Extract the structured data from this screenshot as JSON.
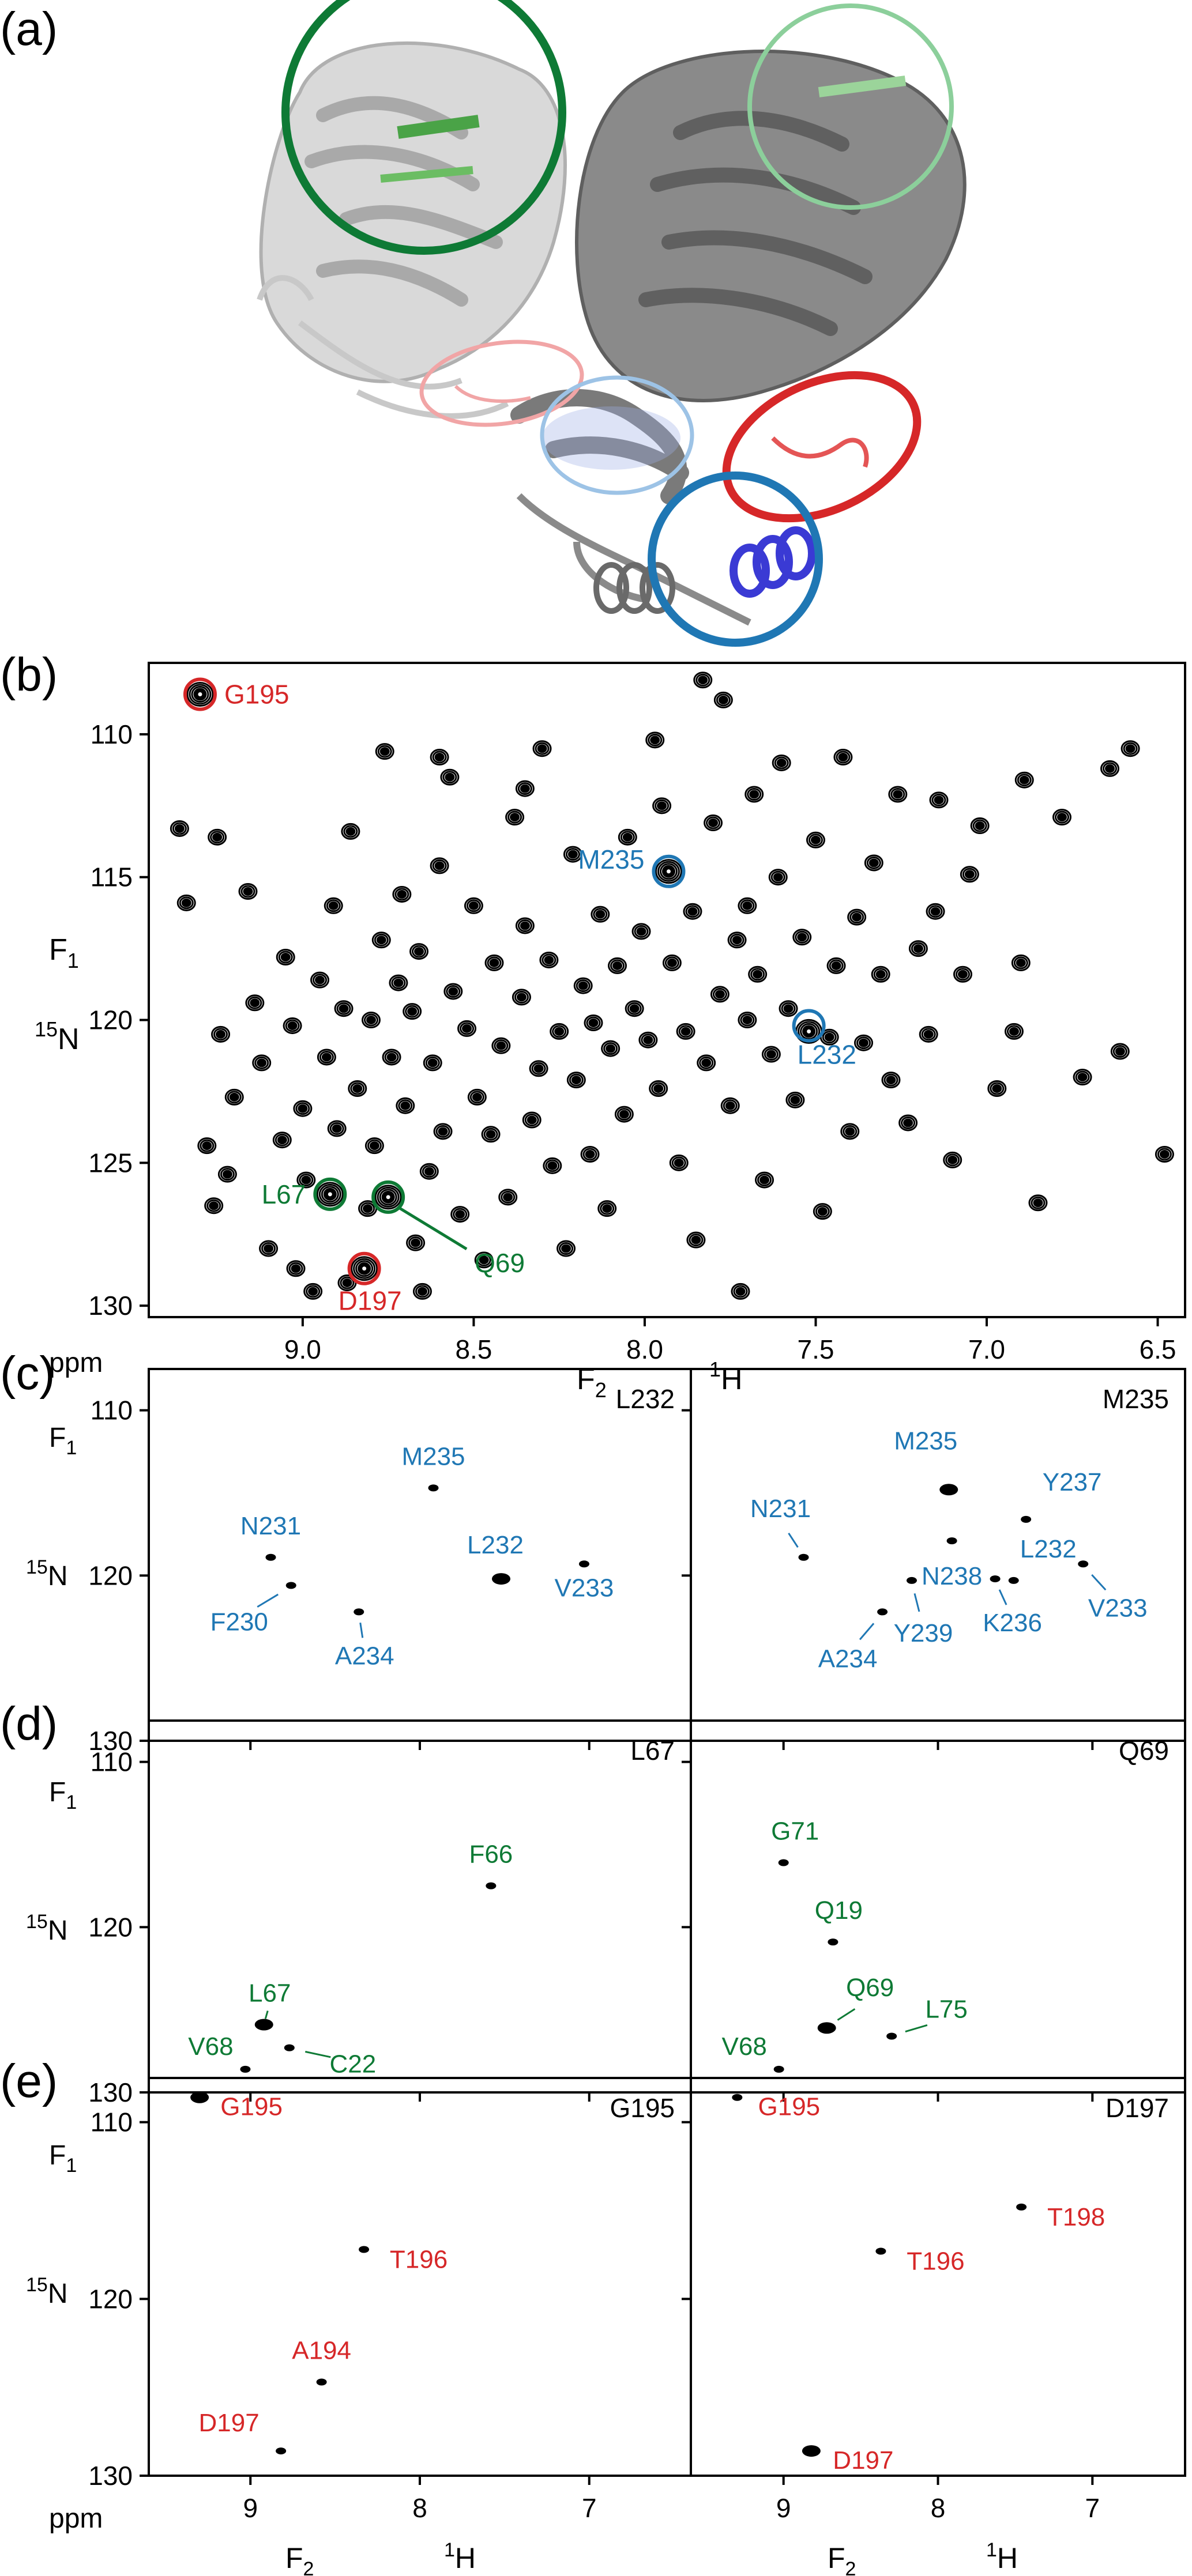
{
  "panel_letters": {
    "a": "(a)",
    "b": "(b)",
    "c": "(c)",
    "d": "(d)",
    "e": "(e)"
  },
  "colors": {
    "blue": "#1f77b4",
    "green": "#0e7a35",
    "red": "#d62728",
    "black": "#000000",
    "light_green": "#8ccf9b",
    "light_red": "#f1a5a6",
    "light_blue": "#9dc3e6"
  },
  "axis_text": {
    "ppm": "ppm",
    "f1_main": "F",
    "f1_sub": "1",
    "n_sup": "15",
    "n_main": "N",
    "f2_main": "F",
    "f2_sub": "2",
    "h_sup": "1",
    "h_main": "H"
  },
  "structure": {
    "highlight_circles": [
      {
        "color": "green",
        "style": "dark"
      },
      {
        "color": "green",
        "style": "light"
      },
      {
        "color": "red",
        "style": "light"
      },
      {
        "color": "blue",
        "style": "light"
      },
      {
        "color": "red",
        "style": "dark"
      },
      {
        "color": "blue",
        "style": "dark"
      }
    ]
  },
  "chart_data": [
    {
      "id": "b",
      "type": "scatter",
      "title": "",
      "xlabel": "F2 1H",
      "ylabel": "F1 15N",
      "xlim": [
        9.45,
        6.42
      ],
      "ylim": [
        130.4,
        107.5
      ],
      "xticks": [
        9.0,
        8.5,
        8.0,
        7.5,
        7.0,
        6.5
      ],
      "xtick_labels": [
        "9.0",
        "8.5",
        "8.0",
        "7.5",
        "7.0",
        "6.5"
      ],
      "yticks": [
        110,
        115,
        120,
        125,
        130
      ],
      "ytick_labels": [
        "110",
        "115",
        "120",
        "125",
        "130"
      ],
      "peaks_hN": [
        [
          9.3,
          108.6,
          2
        ],
        [
          9.36,
          113.3,
          1
        ],
        [
          9.34,
          115.9,
          1
        ],
        [
          9.25,
          113.6,
          1
        ],
        [
          9.24,
          120.5,
          1
        ],
        [
          9.26,
          126.5,
          1
        ],
        [
          9.28,
          124.4,
          1
        ],
        [
          9.22,
          125.4,
          1
        ],
        [
          9.2,
          122.7,
          1
        ],
        [
          9.16,
          115.5,
          1
        ],
        [
          9.14,
          119.4,
          1
        ],
        [
          9.12,
          121.5,
          1
        ],
        [
          9.1,
          128.0,
          1
        ],
        [
          9.06,
          124.2,
          1
        ],
        [
          9.05,
          117.8,
          1
        ],
        [
          9.03,
          120.2,
          1
        ],
        [
          9.02,
          128.7,
          1
        ],
        [
          9.0,
          123.1,
          1
        ],
        [
          8.99,
          125.6,
          1
        ],
        [
          8.97,
          129.5,
          1
        ],
        [
          8.95,
          118.6,
          1
        ],
        [
          8.93,
          121.3,
          1
        ],
        [
          8.92,
          126.1,
          2
        ],
        [
          8.91,
          116.0,
          1
        ],
        [
          8.9,
          123.8,
          1
        ],
        [
          8.88,
          119.6,
          1
        ],
        [
          8.87,
          129.2,
          1
        ],
        [
          8.86,
          113.4,
          1
        ],
        [
          8.84,
          122.4,
          1
        ],
        [
          8.82,
          128.7,
          2
        ],
        [
          8.81,
          126.6,
          1
        ],
        [
          8.8,
          120.0,
          1
        ],
        [
          8.79,
          124.4,
          1
        ],
        [
          8.77,
          117.2,
          1
        ],
        [
          8.76,
          110.6,
          1
        ],
        [
          8.75,
          126.2,
          2
        ],
        [
          8.74,
          121.3,
          1
        ],
        [
          8.72,
          118.7,
          1
        ],
        [
          8.71,
          115.6,
          1
        ],
        [
          8.7,
          123.0,
          1
        ],
        [
          8.68,
          119.7,
          1
        ],
        [
          8.67,
          127.8,
          1
        ],
        [
          8.66,
          117.6,
          1
        ],
        [
          8.65,
          129.5,
          1
        ],
        [
          8.63,
          125.3,
          1
        ],
        [
          8.62,
          121.5,
          1
        ],
        [
          8.6,
          114.6,
          1
        ],
        [
          8.59,
          123.9,
          1
        ],
        [
          8.57,
          111.5,
          1
        ],
        [
          8.56,
          119.0,
          1
        ],
        [
          8.54,
          126.8,
          1
        ],
        [
          8.52,
          120.3,
          1
        ],
        [
          8.5,
          116.0,
          1
        ],
        [
          8.49,
          122.7,
          1
        ],
        [
          8.47,
          128.4,
          1
        ],
        [
          8.45,
          124.0,
          1
        ],
        [
          8.44,
          118.0,
          1
        ],
        [
          8.42,
          120.9,
          1
        ],
        [
          8.4,
          126.2,
          1
        ],
        [
          8.38,
          112.9,
          1
        ],
        [
          8.36,
          119.2,
          1
        ],
        [
          8.35,
          116.7,
          1
        ],
        [
          8.33,
          123.5,
          1
        ],
        [
          8.31,
          121.7,
          1
        ],
        [
          8.3,
          110.5,
          1
        ],
        [
          8.28,
          117.9,
          1
        ],
        [
          8.27,
          125.1,
          1
        ],
        [
          8.25,
          120.4,
          1
        ],
        [
          8.23,
          128.0,
          1
        ],
        [
          8.21,
          114.2,
          1
        ],
        [
          8.2,
          122.1,
          1
        ],
        [
          8.18,
          118.8,
          1
        ],
        [
          8.16,
          124.7,
          1
        ],
        [
          8.15,
          120.1,
          1
        ],
        [
          8.13,
          116.3,
          1
        ],
        [
          8.11,
          126.6,
          1
        ],
        [
          8.1,
          121.0,
          1
        ],
        [
          8.08,
          118.1,
          1
        ],
        [
          8.06,
          123.3,
          1
        ],
        [
          8.05,
          113.6,
          1
        ],
        [
          8.03,
          119.6,
          1
        ],
        [
          8.01,
          116.9,
          1
        ],
        [
          7.99,
          120.7,
          1
        ],
        [
          7.97,
          110.2,
          1
        ],
        [
          7.96,
          122.4,
          1
        ],
        [
          7.93,
          114.8,
          2
        ],
        [
          7.92,
          118.0,
          1
        ],
        [
          7.9,
          125.0,
          1
        ],
        [
          7.88,
          120.4,
          1
        ],
        [
          7.86,
          116.2,
          1
        ],
        [
          7.85,
          127.7,
          1
        ],
        [
          7.83,
          108.1,
          1
        ],
        [
          7.82,
          121.5,
          1
        ],
        [
          7.8,
          113.1,
          1
        ],
        [
          7.78,
          119.1,
          1
        ],
        [
          7.77,
          108.8,
          1
        ],
        [
          7.75,
          123.0,
          1
        ],
        [
          7.73,
          117.2,
          1
        ],
        [
          7.72,
          129.5,
          1
        ],
        [
          7.7,
          120.0,
          1
        ],
        [
          7.68,
          112.1,
          1
        ],
        [
          7.67,
          118.4,
          1
        ],
        [
          7.65,
          125.6,
          1
        ],
        [
          7.63,
          121.2,
          1
        ],
        [
          7.61,
          115.0,
          1
        ],
        [
          7.6,
          111.0,
          1
        ],
        [
          7.58,
          119.6,
          1
        ],
        [
          7.56,
          122.8,
          1
        ],
        [
          7.54,
          117.1,
          1
        ],
        [
          7.52,
          120.4,
          2
        ],
        [
          7.5,
          113.7,
          1
        ],
        [
          7.48,
          126.7,
          1
        ],
        [
          7.46,
          120.6,
          1
        ],
        [
          7.44,
          118.1,
          1
        ],
        [
          7.42,
          110.8,
          1
        ],
        [
          7.4,
          123.9,
          1
        ],
        [
          7.38,
          116.4,
          1
        ],
        [
          7.36,
          120.8,
          1
        ],
        [
          7.33,
          114.5,
          1
        ],
        [
          7.31,
          118.4,
          1
        ],
        [
          7.28,
          122.1,
          1
        ],
        [
          7.26,
          112.1,
          1
        ],
        [
          7.23,
          123.6,
          1
        ],
        [
          7.2,
          117.5,
          1
        ],
        [
          7.17,
          120.5,
          1
        ],
        [
          7.14,
          112.3,
          1
        ],
        [
          7.1,
          124.9,
          1
        ],
        [
          7.07,
          118.4,
          1
        ],
        [
          7.02,
          113.2,
          1
        ],
        [
          6.97,
          122.4,
          1
        ],
        [
          6.92,
          120.4,
          1
        ],
        [
          6.89,
          111.6,
          1
        ],
        [
          6.85,
          126.4,
          1
        ],
        [
          6.78,
          112.9,
          1
        ],
        [
          6.72,
          122.0,
          1
        ],
        [
          6.64,
          111.2,
          1
        ],
        [
          6.61,
          121.1,
          1
        ],
        [
          6.58,
          110.5,
          1
        ],
        [
          6.48,
          124.7,
          1
        ],
        [
          6.9,
          118.0,
          1
        ],
        [
          7.05,
          114.9,
          1
        ],
        [
          7.15,
          116.2,
          1
        ],
        [
          8.35,
          111.9,
          1
        ],
        [
          8.6,
          110.8,
          1
        ],
        [
          7.7,
          116.0,
          1
        ],
        [
          7.95,
          112.5,
          1
        ]
      ],
      "labels": [
        {
          "text": "G195",
          "color": "red",
          "x": 9.3,
          "y": 108.6,
          "circled": true
        },
        {
          "text": "M235",
          "color": "blue",
          "x": 7.93,
          "y": 114.8,
          "circled": true
        },
        {
          "text": "L232",
          "color": "blue",
          "x": 7.52,
          "y": 120.2,
          "circled": true
        },
        {
          "text": "L67",
          "color": "green",
          "x": 8.92,
          "y": 126.1,
          "circled": true
        },
        {
          "text": "Q69",
          "color": "green",
          "x": 8.75,
          "y": 126.2,
          "circled": true
        },
        {
          "text": "D197",
          "color": "red",
          "x": 8.82,
          "y": 128.7,
          "circled": true
        }
      ]
    },
    {
      "id": "c-left",
      "type": "scatter",
      "title": "L232",
      "xlim": [
        9.6,
        6.4
      ],
      "ylim": [
        130,
        107.5
      ],
      "xticks": [
        9,
        8,
        7
      ],
      "yticks": [
        110,
        120,
        130
      ],
      "ytick_labels": [
        "110",
        "120",
        "130"
      ],
      "points": [
        {
          "label": "M235",
          "x": 7.92,
          "y": 114.7,
          "color": "blue"
        },
        {
          "label": "N231",
          "x": 8.88,
          "y": 118.9,
          "color": "blue"
        },
        {
          "label": "L232",
          "x": 7.52,
          "y": 120.2,
          "color": "blue"
        },
        {
          "label": "V233",
          "x": 7.03,
          "y": 119.3,
          "color": "blue"
        },
        {
          "label": "F230",
          "x": 8.76,
          "y": 120.6,
          "color": "blue"
        },
        {
          "label": "A234",
          "x": 8.36,
          "y": 122.2,
          "color": "blue"
        }
      ]
    },
    {
      "id": "c-right",
      "type": "scatter",
      "title": "M235",
      "xlim": [
        9.6,
        6.4
      ],
      "ylim": [
        130,
        107.5
      ],
      "xticks": [
        9,
        8,
        7
      ],
      "yticks": [
        110,
        120,
        130
      ],
      "points": [
        {
          "label": "M235",
          "x": 7.93,
          "y": 114.8,
          "color": "blue"
        },
        {
          "label": "N238",
          "x": 7.91,
          "y": 117.9,
          "color": "blue"
        },
        {
          "label": "Y237",
          "x": 7.43,
          "y": 116.6,
          "color": "blue"
        },
        {
          "label": "N231",
          "x": 8.87,
          "y": 118.9,
          "color": "blue"
        },
        {
          "label": "L232",
          "x": 7.51,
          "y": 120.3,
          "color": "blue"
        },
        {
          "label": "K236",
          "x": 7.63,
          "y": 120.2,
          "color": "blue"
        },
        {
          "label": "Y239",
          "x": 8.17,
          "y": 120.3,
          "color": "blue"
        },
        {
          "label": "V233",
          "x": 7.06,
          "y": 119.3,
          "color": "blue"
        },
        {
          "label": "A234",
          "x": 8.36,
          "y": 122.2,
          "color": "blue"
        }
      ]
    },
    {
      "id": "d-left",
      "type": "scatter",
      "title": "L67",
      "xlim": [
        9.6,
        6.4
      ],
      "ylim": [
        130,
        107.5
      ],
      "xticks": [
        9,
        8,
        7
      ],
      "yticks": [
        110,
        120,
        130
      ],
      "ytick_labels": [
        "110",
        "120",
        "130"
      ],
      "points": [
        {
          "label": "F66",
          "x": 7.58,
          "y": 117.5,
          "color": "green"
        },
        {
          "label": "L67",
          "x": 8.92,
          "y": 125.9,
          "color": "green"
        },
        {
          "label": "C22",
          "x": 8.77,
          "y": 127.3,
          "color": "green"
        },
        {
          "label": "V68",
          "x": 9.03,
          "y": 128.6,
          "color": "green"
        }
      ]
    },
    {
      "id": "d-right",
      "type": "scatter",
      "title": "Q69",
      "xlim": [
        9.6,
        6.4
      ],
      "ylim": [
        130,
        107.5
      ],
      "xticks": [
        9,
        8,
        7
      ],
      "yticks": [
        110,
        120,
        130
      ],
      "points": [
        {
          "label": "G71",
          "x": 9.0,
          "y": 116.1,
          "color": "green"
        },
        {
          "label": "Q19",
          "x": 8.68,
          "y": 120.9,
          "color": "green"
        },
        {
          "label": "Q69",
          "x": 8.72,
          "y": 126.1,
          "color": "green"
        },
        {
          "label": "L75",
          "x": 8.3,
          "y": 126.6,
          "color": "green"
        },
        {
          "label": "V68",
          "x": 9.03,
          "y": 128.6,
          "color": "green"
        }
      ]
    },
    {
      "id": "e-left",
      "type": "scatter",
      "title": "G195",
      "xlim": [
        9.6,
        6.4
      ],
      "ylim": [
        130,
        107.5
      ],
      "xticks": [
        9,
        8,
        7
      ],
      "xtick_labels": [
        "9",
        "8",
        "7"
      ],
      "yticks": [
        110,
        120,
        130
      ],
      "ytick_labels": [
        "110",
        "120",
        "130"
      ],
      "points": [
        {
          "label": "G195",
          "x": 9.3,
          "y": 108.6,
          "color": "red"
        },
        {
          "label": "T196",
          "x": 8.33,
          "y": 117.2,
          "color": "red"
        },
        {
          "label": "A194",
          "x": 8.58,
          "y": 124.7,
          "color": "red"
        },
        {
          "label": "D197",
          "x": 8.82,
          "y": 128.6,
          "color": "red"
        }
      ]
    },
    {
      "id": "e-right",
      "type": "scatter",
      "title": "D197",
      "xlim": [
        9.6,
        6.4
      ],
      "ylim": [
        130,
        107.5
      ],
      "xticks": [
        9,
        8,
        7
      ],
      "xtick_labels": [
        "9",
        "8",
        "7"
      ],
      "yticks": [
        110,
        120,
        130
      ],
      "points": [
        {
          "label": "G195",
          "x": 9.3,
          "y": 108.6,
          "color": "red"
        },
        {
          "label": "T196",
          "x": 8.37,
          "y": 117.3,
          "color": "red"
        },
        {
          "label": "T198",
          "x": 7.46,
          "y": 114.8,
          "color": "red"
        },
        {
          "label": "D197",
          "x": 8.82,
          "y": 128.6,
          "color": "red"
        }
      ]
    }
  ]
}
